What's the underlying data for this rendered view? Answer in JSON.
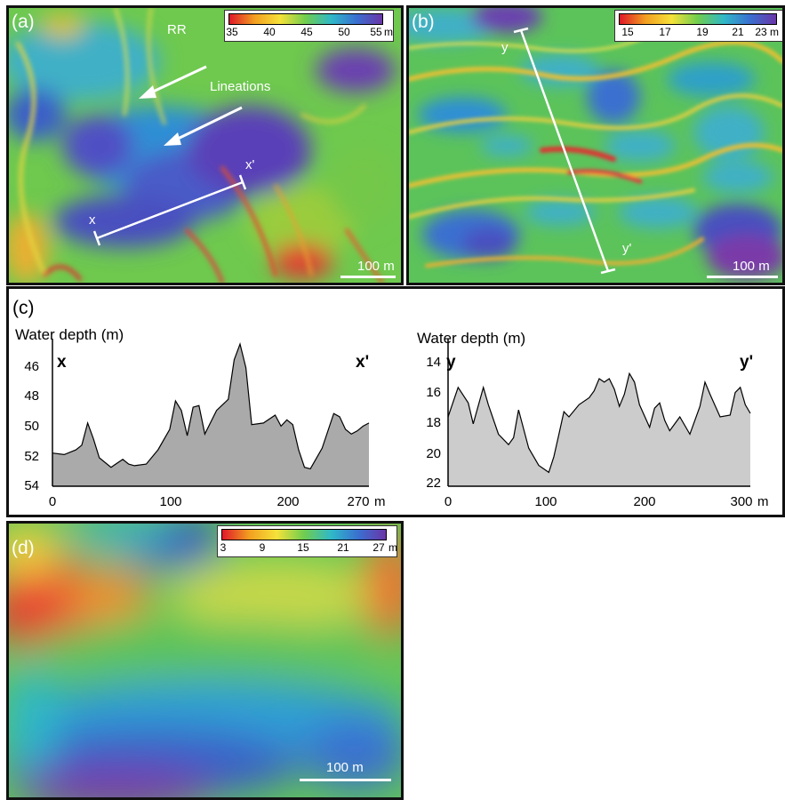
{
  "panel_a": {
    "label": "(a)",
    "colorbar": {
      "ticks": [
        "35",
        "40",
        "45",
        "50",
        "55"
      ],
      "unit": "m"
    },
    "labels": {
      "rr": "RR",
      "lineations": "Lineations",
      "x": "x",
      "xprime": "x'"
    },
    "scalebar": "100 m"
  },
  "panel_b": {
    "label": "(b)",
    "colorbar": {
      "ticks": [
        "15",
        "17",
        "19",
        "21",
        "23"
      ],
      "unit": "m"
    },
    "labels": {
      "y": "y",
      "yprime": "y'"
    },
    "scalebar": "100 m"
  },
  "panel_c": {
    "label": "(c)",
    "left_profile": {
      "title": "Water depth (m)",
      "start_label": "x",
      "end_label": "x'",
      "y_ticks": [
        "46",
        "48",
        "50",
        "52",
        "54"
      ],
      "x_ticks": [
        "0",
        "100",
        "200",
        "270"
      ],
      "x_unit": "m"
    },
    "right_profile": {
      "title": "Water depth (m)",
      "start_label": "y",
      "end_label": "y'",
      "y_ticks": [
        "14",
        "16",
        "18",
        "20",
        "22"
      ],
      "x_ticks": [
        "0",
        "100",
        "200",
        "300"
      ],
      "x_unit": "m"
    }
  },
  "panel_d": {
    "label": "(d)",
    "colorbar": {
      "ticks": [
        "3",
        "9",
        "15",
        "21",
        "27"
      ],
      "unit": "m"
    },
    "scalebar": "100 m"
  },
  "chart_data": [
    {
      "type": "area",
      "xlabel": "m",
      "ylabel": "Water depth (m)",
      "xlim": [
        0,
        270
      ],
      "ylim": [
        54,
        45
      ],
      "x": [
        0,
        10,
        20,
        25,
        30,
        35,
        40,
        50,
        60,
        65,
        70,
        80,
        90,
        100,
        105,
        110,
        115,
        120,
        125,
        130,
        140,
        150,
        155,
        160,
        165,
        170,
        180,
        190,
        195,
        200,
        205,
        210,
        215,
        220,
        230,
        240,
        245,
        250,
        255,
        260,
        265,
        270
      ],
      "y": [
        51.9,
        52.0,
        51.7,
        51.4,
        50.0,
        51.0,
        52.2,
        52.8,
        52.3,
        52.6,
        52.7,
        52.6,
        51.7,
        50.4,
        48.6,
        49.2,
        50.8,
        49.0,
        48.9,
        50.7,
        49.2,
        48.5,
        46.0,
        45.0,
        46.5,
        50.1,
        50.0,
        49.5,
        50.2,
        49.8,
        50.1,
        51.7,
        52.8,
        52.9,
        51.6,
        49.4,
        49.6,
        50.4,
        50.7,
        50.5,
        50.2,
        50.0
      ]
    },
    {
      "type": "area",
      "xlabel": "m",
      "ylabel": "Water depth (m)",
      "xlim": [
        0,
        300
      ],
      "ylim": [
        22,
        13.8
      ],
      "x": [
        0,
        10,
        20,
        25,
        35,
        40,
        50,
        60,
        65,
        70,
        75,
        80,
        90,
        100,
        105,
        110,
        115,
        120,
        130,
        140,
        145,
        150,
        155,
        160,
        165,
        170,
        175,
        180,
        185,
        190,
        200,
        205,
        210,
        215,
        220,
        230,
        240,
        250,
        255,
        260,
        270,
        280,
        285,
        290,
        295,
        300
      ],
      "y": [
        18.0,
        16.3,
        17.2,
        18.4,
        16.3,
        17.3,
        19.0,
        19.6,
        19.2,
        17.6,
        18.7,
        19.8,
        20.8,
        21.2,
        20.3,
        19.0,
        17.7,
        18.0,
        17.3,
        16.9,
        16.5,
        15.8,
        16.0,
        15.8,
        16.4,
        17.4,
        16.7,
        15.5,
        16.0,
        17.3,
        18.6,
        17.5,
        17.2,
        18.2,
        18.8,
        18.0,
        19.0,
        17.4,
        16.0,
        16.7,
        18.0,
        17.9,
        16.6,
        16.3,
        17.3,
        17.8
      ]
    }
  ]
}
